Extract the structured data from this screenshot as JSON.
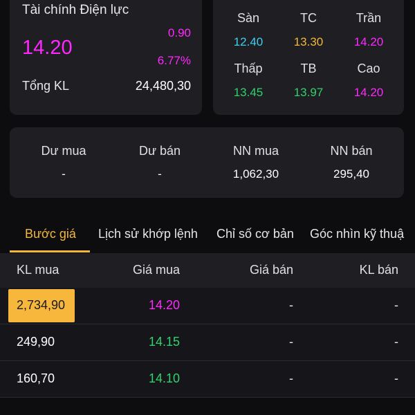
{
  "summary": {
    "company": "Tài chính Điện lực",
    "price": "14.20",
    "change": "0.90",
    "change_pct": "6.77%",
    "volume_label": "Tổng KL",
    "volume_value": "24,480,30"
  },
  "prices": [
    {
      "label": "Sàn",
      "value": "12.40",
      "color": "#3fd0f0"
    },
    {
      "label": "TC",
      "value": "13.30",
      "color": "#f5b73a"
    },
    {
      "label": "Trần",
      "value": "14.20",
      "color": "#ff28ff"
    },
    {
      "label": "Thấp",
      "value": "13.45",
      "color": "#2fd36b"
    },
    {
      "label": "TB",
      "value": "13.97",
      "color": "#2fd36b"
    },
    {
      "label": "Cao",
      "value": "14.20",
      "color": "#ff28ff"
    }
  ],
  "trade": [
    {
      "label": "Dư mua",
      "value": "-"
    },
    {
      "label": "Dư bán",
      "value": "-"
    },
    {
      "label": "NN mua",
      "value": "1,062,30"
    },
    {
      "label": "NN bán",
      "value": "295,40"
    }
  ],
  "tabs": [
    "Bước giá",
    "Lịch sử khớp lệnh",
    "Chỉ số cơ bản",
    "Góc nhìn kỹ thuậ"
  ],
  "active_tab": "Bước giá",
  "orderbook": {
    "headers": [
      "KL mua",
      "Giá mua",
      "Giá bán",
      "KL bán"
    ],
    "rows": [
      {
        "kl_mua": "2,734,90",
        "gia_mua": "14.20",
        "gia_ban": "-",
        "kl_ban": "-",
        "price_color": "#ff28ff",
        "highlight": true
      },
      {
        "kl_mua": "249,90",
        "gia_mua": "14.15",
        "gia_ban": "-",
        "kl_ban": "-",
        "price_color": "#2fd36b",
        "highlight": false
      },
      {
        "kl_mua": "160,70",
        "gia_mua": "14.10",
        "gia_ban": "-",
        "kl_ban": "-",
        "price_color": "#2fd36b",
        "highlight": false
      }
    ]
  },
  "colors": {
    "accent": "#f5b73a",
    "ceiling": "#ff28ff",
    "up": "#2fd36b",
    "floor": "#3fd0f0"
  }
}
